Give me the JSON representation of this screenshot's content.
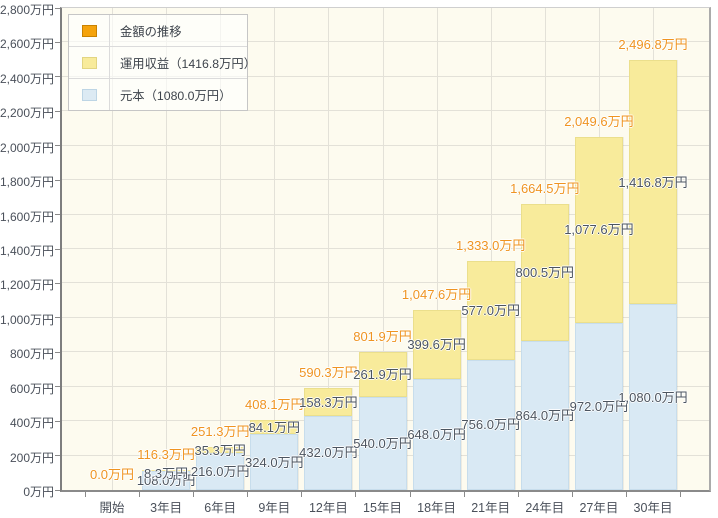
{
  "colors": {
    "plot_bg": "#FDFBEF",
    "grid": "#E3E1D8",
    "axis": "#8A8A8A",
    "label_dark": "#4C5560",
    "label_orange": "#EF9421"
  },
  "legend": {
    "items": [
      {
        "id": "total",
        "label": "金額の推移",
        "swatch_color": "#F5A30B",
        "swatch_border": "#C98200"
      },
      {
        "id": "returns",
        "label": "運用収益（1416.8万円）",
        "swatch_color": "#F8EB9B",
        "swatch_border": "#E2D582"
      },
      {
        "id": "principal",
        "label": "元本（1080.0万円）",
        "swatch_color": "#DCEAF3",
        "swatch_border": "#BDD5E5"
      }
    ]
  },
  "chart_data": {
    "type": "bar",
    "stacked": true,
    "title": "金額の推移",
    "xlabel": "",
    "ylabel": "",
    "grid": true,
    "legend_position": "top-left",
    "ylim": [
      0,
      2800
    ],
    "ytick_step": 200,
    "ytick_values": [
      0,
      200,
      400,
      600,
      800,
      1000,
      1200,
      1400,
      1600,
      1800,
      2000,
      2200,
      2400,
      2600,
      2800
    ],
    "ytick_labels": [
      "0万円",
      "200万円",
      "400万円",
      "600万円",
      "800万円",
      "1,000万円",
      "1,200万円",
      "1,400万円",
      "1,600万円",
      "1,800万円",
      "2,000万円",
      "2,200万円",
      "2,400万円",
      "2,600万円",
      "2,800万円"
    ],
    "categories": [
      "開始",
      "3年目",
      "6年目",
      "9年目",
      "12年目",
      "15年目",
      "18年目",
      "21年目",
      "24年目",
      "27年目",
      "30年目"
    ],
    "series": [
      {
        "name": "元本",
        "legend_label": "元本（1080.0万円）",
        "color": "#D9E9F4",
        "border_color": "#C7DDEC",
        "values": [
          0,
          108.0,
          216.0,
          324.0,
          432.0,
          540.0,
          648.0,
          756.0,
          864.0,
          972.0,
          1080.0
        ],
        "value_labels": [
          "",
          "108.0万円",
          "216.0万円",
          "324.0万円",
          "432.0万円",
          "540.0万円",
          "648.0万円",
          "756.0万円",
          "864.0万円",
          "972.0万円",
          "1,080.0万円"
        ]
      },
      {
        "name": "運用収益",
        "legend_label": "運用収益（1416.8万円）",
        "color": "#F8EB9B",
        "border_color": "#EBDF8C",
        "values": [
          0,
          8.3,
          35.3,
          84.1,
          158.3,
          261.9,
          399.6,
          577.0,
          800.5,
          1077.6,
          1416.8
        ],
        "value_labels": [
          "",
          "8.3万円",
          "35.3万円",
          "84.1万円",
          "158.3万円",
          "261.9万円",
          "399.6万円",
          "577.0万円",
          "800.5万円",
          "1,077.6万円",
          "1,416.8万円"
        ]
      }
    ],
    "totals": {
      "name": "金額の推移",
      "color": "#EF9421",
      "values": [
        0.0,
        116.3,
        251.3,
        408.1,
        590.3,
        801.9,
        1047.6,
        1333.0,
        1664.5,
        2049.6,
        2496.8
      ],
      "value_labels": [
        "0.0万円",
        "116.3万円",
        "251.3万円",
        "408.1万円",
        "590.3万円",
        "801.9万円",
        "1,047.6万円",
        "1,333.0万円",
        "1,664.5万円",
        "2,049.6万円",
        "2,496.8万円"
      ]
    }
  }
}
